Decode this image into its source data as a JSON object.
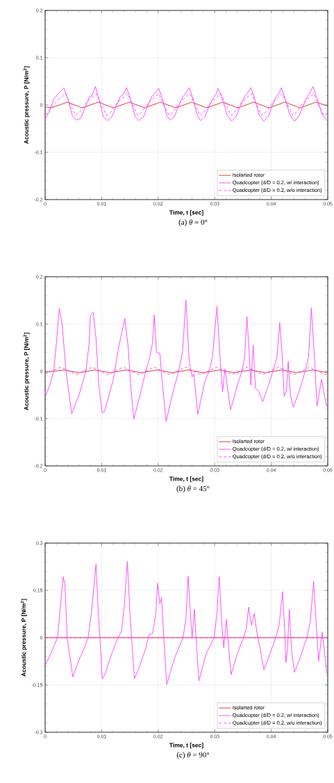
{
  "chart_data": [
    {
      "type": "line",
      "annotations": [
        "(a)  *θ* = 0°"
      ],
      "xlabel": "Time, t [sec]",
      "ylabel": "Acoustic pressure, P [N/m$^{2}$]",
      "xlim": [
        0,
        0.05
      ],
      "ylim": [
        -0.2,
        0.2
      ],
      "xticks": [
        0,
        0.01,
        0.02,
        0.03,
        0.04,
        0.05
      ],
      "yticks": [
        -0.2,
        -0.1,
        0,
        0.1,
        0.2
      ],
      "grid": true,
      "legend": "bottom right",
      "series": [
        {
          "name": "Isolarted rotor",
          "color": "#e02a1e",
          "line_style": "solid",
          "x": [
            0,
            0.0011,
            0.0039,
            0.0066,
            0.0094,
            0.0121,
            0.0149,
            0.0176,
            0.0204,
            0.0231,
            0.0259,
            0.0286,
            0.0314,
            0.0341,
            0.0369,
            0.0396,
            0.0424,
            0.0451,
            0.0479,
            0.05
          ],
          "values": [
            -0.004,
            -0.006,
            0.006,
            -0.006,
            0.006,
            -0.006,
            0.006,
            -0.006,
            0.006,
            -0.006,
            0.006,
            -0.006,
            0.006,
            -0.006,
            0.006,
            -0.006,
            0.006,
            -0.006,
            0.006,
            -0.002
          ]
        },
        {
          "name": "Quadcopter (d/D = 0.2, w/ interaction)",
          "color": "#ff3cff",
          "line_style": "solid",
          "x": [
            0,
            0.0008,
            0.0015,
            0.0022,
            0.0033,
            0.0041,
            0.0048,
            0.0055,
            0.0063,
            0.0071,
            0.0078,
            0.0083,
            0.0089,
            0.0097,
            0.0103,
            0.011,
            0.0118,
            0.0126,
            0.0133,
            0.0138,
            0.0144,
            0.0152,
            0.0159,
            0.0166,
            0.0174,
            0.0182,
            0.0189,
            0.0194,
            0.0201,
            0.0209,
            0.0215,
            0.0221,
            0.0229,
            0.0237,
            0.0244,
            0.0249,
            0.0255,
            0.0263,
            0.0269,
            0.0275,
            0.0283,
            0.0291,
            0.0298,
            0.0303,
            0.0306,
            0.0315,
            0.0322,
            0.033,
            0.0338,
            0.0346,
            0.0353,
            0.0358,
            0.0364,
            0.0372,
            0.0379,
            0.0387,
            0.0395,
            0.0402,
            0.0409,
            0.0414,
            0.0418,
            0.0426,
            0.0433,
            0.0441,
            0.0449,
            0.0457,
            0.0464,
            0.0469,
            0.0474,
            0.0482,
            0.049,
            0.05
          ],
          "values": [
            -0.03,
            -0.012,
            0.012,
            0.022,
            0.036,
            0.01,
            -0.022,
            -0.032,
            -0.028,
            -0.005,
            0.017,
            0.02,
            0.039,
            0.005,
            -0.025,
            -0.033,
            -0.025,
            -0.002,
            0.018,
            0.022,
            0.037,
            0.008,
            -0.024,
            -0.033,
            -0.025,
            0.0,
            0.018,
            0.025,
            0.035,
            0.008,
            -0.022,
            -0.032,
            -0.024,
            0.0,
            0.018,
            0.025,
            0.037,
            0.008,
            -0.022,
            -0.033,
            -0.024,
            0.0,
            0.016,
            0.024,
            0.035,
            0.008,
            -0.022,
            -0.034,
            -0.024,
            0.0,
            0.018,
            0.025,
            0.037,
            0.008,
            -0.022,
            -0.034,
            -0.024,
            0.0,
            0.018,
            0.025,
            0.037,
            0.008,
            -0.022,
            -0.034,
            -0.024,
            0.0,
            0.018,
            0.028,
            0.039,
            0.01,
            -0.02,
            -0.035
          ]
        },
        {
          "name": "Quadcopter (d/D = 0.2, w/o interaction)",
          "color": "#ff3cff",
          "line_style": "dashed",
          "x": [
            0,
            0.0006,
            0.0018,
            0.0036,
            0.0045,
            0.0054,
            0.0061,
            0.0073,
            0.0091,
            0.01,
            0.0109,
            0.0116,
            0.0128,
            0.0146,
            0.0155,
            0.0164,
            0.0171,
            0.0183,
            0.0201,
            0.021,
            0.0219,
            0.0226,
            0.0238,
            0.0256,
            0.0265,
            0.0274,
            0.0281,
            0.0293,
            0.0311,
            0.032,
            0.0329,
            0.0335,
            0.0347,
            0.0365,
            0.0374,
            0.0383,
            0.039,
            0.0402,
            0.042,
            0.0429,
            0.0438,
            0.0445,
            0.0457,
            0.0475,
            0.0484,
            0.0493,
            0.05
          ],
          "values": [
            -0.02,
            -0.015,
            0.005,
            0.024,
            0.0,
            -0.022,
            -0.015,
            0.005,
            0.024,
            0.0,
            -0.022,
            -0.015,
            0.005,
            0.024,
            0.0,
            -0.022,
            -0.015,
            0.005,
            0.024,
            0.0,
            -0.022,
            -0.015,
            0.005,
            0.024,
            0.0,
            -0.022,
            -0.015,
            0.005,
            0.024,
            0.0,
            -0.022,
            -0.015,
            0.005,
            0.024,
            0.0,
            -0.022,
            -0.015,
            0.005,
            0.024,
            0.0,
            -0.022,
            -0.015,
            0.005,
            0.024,
            0.0,
            -0.022,
            -0.018
          ]
        }
      ]
    },
    {
      "type": "line",
      "annotations": [
        "(b)  *θ* = 45°"
      ],
      "xlabel": "Time, t [sec]",
      "ylabel": "Acoustic pressure, P [N/m$^{2}$]",
      "xlim": [
        0,
        0.05
      ],
      "ylim": [
        -0.2,
        0.2
      ],
      "xticks": [
        0,
        0.01,
        0.02,
        0.03,
        0.04,
        0.05
      ],
      "yticks": [
        -0.2,
        -0.1,
        0,
        0.1,
        0.2
      ],
      "grid": true,
      "legend": "bottom right",
      "series": [
        {
          "name": "Isolarted rotor",
          "color": "#e02a1e",
          "line_style": "solid",
          "x": [
            0,
            0.0033,
            0.006,
            0.0088,
            0.0115,
            0.0143,
            0.017,
            0.0198,
            0.0225,
            0.0253,
            0.028,
            0.0308,
            0.0335,
            0.0363,
            0.039,
            0.0418,
            0.0445,
            0.0473,
            0.05
          ],
          "values": [
            -0.002,
            0.003,
            -0.003,
            0.003,
            -0.003,
            0.003,
            -0.003,
            0.003,
            -0.003,
            0.003,
            -0.003,
            0.003,
            -0.003,
            0.003,
            -0.003,
            0.003,
            -0.003,
            0.003,
            -0.003
          ]
        },
        {
          "name": "Quadcopter (d/D = 0.2, w/ interaction)",
          "color": "#ff3cff",
          "line_style": "solid",
          "x": [
            0,
            0.0008,
            0.0015,
            0.002,
            0.0025,
            0.003,
            0.0037,
            0.0047,
            0.006,
            0.0072,
            0.0078,
            0.008,
            0.0085,
            0.009,
            0.0095,
            0.0101,
            0.0105,
            0.012,
            0.013,
            0.0141,
            0.0147,
            0.0152,
            0.0157,
            0.017,
            0.0178,
            0.0185,
            0.019,
            0.0193,
            0.0197,
            0.0203,
            0.0207,
            0.0214,
            0.0225,
            0.0236,
            0.0243,
            0.0249,
            0.0255,
            0.026,
            0.0263,
            0.027,
            0.0283,
            0.029,
            0.0296,
            0.0304,
            0.031,
            0.0314,
            0.0318,
            0.0328,
            0.034,
            0.0348,
            0.0353,
            0.0357,
            0.0361,
            0.0364,
            0.0368,
            0.0372,
            0.0378,
            0.0385,
            0.0395,
            0.0403,
            0.041,
            0.0415,
            0.0419,
            0.0423,
            0.0427,
            0.043,
            0.0434,
            0.0439,
            0.045,
            0.046,
            0.0466,
            0.0471,
            0.0476,
            0.0481,
            0.0489,
            0.0494,
            0.0498,
            0.05
          ],
          "values": [
            -0.055,
            -0.03,
            0.0,
            0.06,
            0.133,
            0.1,
            0.0,
            -0.09,
            -0.05,
            0.0,
            0.06,
            0.118,
            0.125,
            0.07,
            -0.03,
            -0.088,
            -0.085,
            -0.02,
            0.05,
            0.112,
            0.05,
            -0.04,
            -0.101,
            -0.04,
            0.0,
            0.03,
            0.06,
            0.119,
            0.04,
            0.038,
            -0.02,
            -0.106,
            -0.05,
            0.0,
            0.04,
            0.151,
            0.02,
            -0.012,
            -0.005,
            -0.091,
            -0.02,
            0.0,
            0.03,
            0.137,
            0.02,
            -0.043,
            0.005,
            -0.081,
            -0.03,
            0.0,
            0.03,
            0.116,
            0.04,
            -0.029,
            0.056,
            -0.035,
            -0.043,
            -0.064,
            -0.03,
            0.0,
            0.03,
            0.103,
            0.04,
            -0.053,
            -0.04,
            0.021,
            -0.05,
            -0.076,
            -0.04,
            0.0,
            0.03,
            0.134,
            0.04,
            -0.074,
            -0.017,
            -0.05,
            -0.074,
            -0.072
          ]
        },
        {
          "name": "Quadcopter (d/D = 0.2, w/o interaction)",
          "color": "#ff3cff",
          "line_style": "dashed",
          "x": [
            0,
            0.0028,
            0.0055,
            0.0083,
            0.011,
            0.0138,
            0.0165,
            0.0193,
            0.022,
            0.0248,
            0.0275,
            0.0303,
            0.033,
            0.0358,
            0.0385,
            0.0413,
            0.044,
            0.0468,
            0.0495,
            0.05
          ],
          "values": [
            -0.006,
            0.009,
            -0.007,
            0.009,
            -0.007,
            0.009,
            -0.007,
            0.009,
            -0.007,
            0.009,
            -0.007,
            0.009,
            -0.007,
            0.009,
            -0.007,
            0.009,
            -0.007,
            0.009,
            -0.007,
            -0.006
          ]
        }
      ]
    },
    {
      "type": "line",
      "annotations": [
        "(c)  *θ* = 90°"
      ],
      "xlabel": "Time, t [sec]",
      "ylabel": "Acoustic pressure, P [N/m$^{2}$]",
      "xlim": [
        0,
        0.05
      ],
      "ylim": [
        -0.3,
        0.3
      ],
      "xticks": [
        0,
        0.01,
        0.02,
        0.03,
        0.04,
        0.05
      ],
      "yticks": [
        -0.3,
        -0.15,
        0,
        0.15,
        0.3
      ],
      "grid": true,
      "legend": "bottom right",
      "series": [
        {
          "name": "Isolarted rotor",
          "color": "#e02a1e",
          "line_style": "solid",
          "x": [
            0,
            0.01,
            0.02,
            0.03,
            0.04,
            0.05
          ],
          "values": [
            0,
            0,
            0,
            0,
            0,
            0
          ]
        },
        {
          "name": "Quadcopter (d/D = 0.2, w/ interaction)",
          "color": "#ff3cff",
          "line_style": "solid",
          "x": [
            0,
            0.001,
            0.0022,
            0.0027,
            0.0032,
            0.0035,
            0.0039,
            0.0049,
            0.006,
            0.007,
            0.0076,
            0.0082,
            0.009,
            0.0094,
            0.0097,
            0.0101,
            0.0106,
            0.0118,
            0.0129,
            0.0135,
            0.014,
            0.01455,
            0.015,
            0.0153,
            0.0158,
            0.0165,
            0.0177,
            0.0184,
            0.019,
            0.0196,
            0.0199,
            0.0203,
            0.0206,
            0.021,
            0.0215,
            0.023,
            0.0244,
            0.0249,
            0.0253,
            0.0258,
            0.026,
            0.0264,
            0.0268,
            0.0272,
            0.0285,
            0.0299,
            0.0304,
            0.0308,
            0.0313,
            0.0316,
            0.0321,
            0.0325,
            0.0329,
            0.034,
            0.0351,
            0.0356,
            0.036,
            0.0365,
            0.037,
            0.0376,
            0.038,
            0.0387,
            0.0398,
            0.0408,
            0.0414,
            0.042,
            0.0424,
            0.0426,
            0.0429,
            0.0432,
            0.0436,
            0.0441,
            0.0452,
            0.0463,
            0.0469,
            0.0475,
            0.048,
            0.0484,
            0.049,
            0.0494,
            0.0498,
            0.05
          ],
          "values": [
            -0.088,
            -0.05,
            0.0,
            0.1,
            0.193,
            0.17,
            0.0,
            -0.124,
            -0.07,
            -0.03,
            0.0,
            0.08,
            0.233,
            0.08,
            0.0,
            -0.13,
            -0.115,
            -0.05,
            0.0,
            0.02,
            0.1,
            0.242,
            0.08,
            0.0,
            -0.13,
            -0.1,
            -0.04,
            0.01,
            0.012,
            0.08,
            0.173,
            0.107,
            0.127,
            0.0,
            -0.148,
            -0.06,
            0.0,
            0.06,
            0.195,
            0.05,
            0.0,
            0.09,
            -0.03,
            -0.137,
            -0.05,
            0.0,
            0.08,
            0.193,
            0.03,
            -0.032,
            0.058,
            -0.04,
            -0.117,
            -0.05,
            0.0,
            0.03,
            0.097,
            0.04,
            0.076,
            0.0,
            -0.03,
            -0.102,
            -0.05,
            0.0,
            0.04,
            0.146,
            0.02,
            -0.079,
            -0.03,
            0.09,
            -0.04,
            -0.11,
            -0.06,
            0.0,
            0.05,
            0.179,
            0.03,
            -0.074,
            0.017,
            -0.04,
            -0.113,
            -0.115
          ]
        },
        {
          "name": "Quadcopter (d/D = 0.2, w/o interaction)",
          "color": "#ff3cff",
          "line_style": "dashed",
          "x": [
            0,
            0.01,
            0.02,
            0.03,
            0.04,
            0.05
          ],
          "values": [
            0,
            0,
            0,
            0,
            0,
            0
          ]
        }
      ]
    }
  ]
}
